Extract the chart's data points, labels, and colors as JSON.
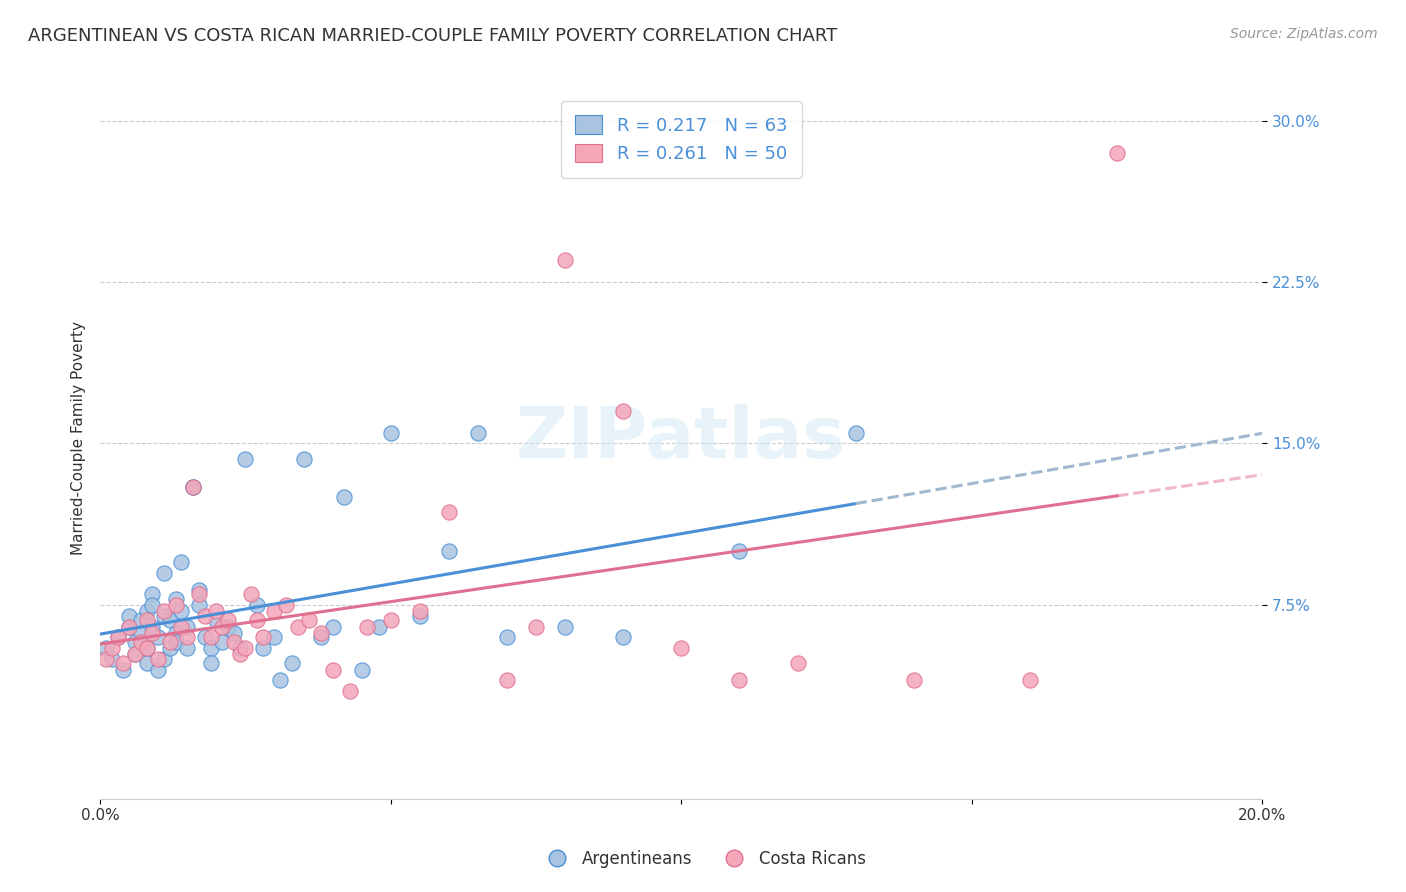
{
  "title": "ARGENTINEAN VS COSTA RICAN MARRIED-COUPLE FAMILY POVERTY CORRELATION CHART",
  "source": "Source: ZipAtlas.com",
  "ylabel": "Married-Couple Family Poverty",
  "xlim": [
    0.0,
    0.2
  ],
  "ylim": [
    -0.015,
    0.32
  ],
  "ytick_labels": [
    "7.5%",
    "15.0%",
    "22.5%",
    "30.0%"
  ],
  "ytick_positions": [
    0.075,
    0.15,
    0.225,
    0.3
  ],
  "argentineans_color": "#a8c4e0",
  "costa_ricans_color": "#f4a7b9",
  "trend_arg_color": "#4a90d9",
  "trend_cr_color": "#e07090",
  "trend_arg_dashed_color": "#a0b8d0",
  "legend_R_arg": "0.217",
  "legend_N_arg": "63",
  "legend_R_cr": "0.261",
  "legend_N_cr": "50",
  "watermark": "ZIPatlas",
  "argentineans_x": [
    0.001,
    0.002,
    0.003,
    0.004,
    0.005,
    0.005,
    0.006,
    0.006,
    0.007,
    0.007,
    0.008,
    0.008,
    0.008,
    0.009,
    0.009,
    0.009,
    0.01,
    0.01,
    0.011,
    0.011,
    0.011,
    0.012,
    0.012,
    0.013,
    0.013,
    0.013,
    0.014,
    0.014,
    0.015,
    0.015,
    0.016,
    0.016,
    0.017,
    0.017,
    0.018,
    0.019,
    0.019,
    0.02,
    0.021,
    0.022,
    0.023,
    0.024,
    0.025,
    0.027,
    0.028,
    0.03,
    0.031,
    0.033,
    0.035,
    0.038,
    0.04,
    0.042,
    0.045,
    0.048,
    0.05,
    0.055,
    0.06,
    0.065,
    0.07,
    0.08,
    0.09,
    0.11,
    0.13
  ],
  "argentineans_y": [
    0.055,
    0.05,
    0.06,
    0.045,
    0.065,
    0.07,
    0.058,
    0.052,
    0.068,
    0.062,
    0.055,
    0.072,
    0.048,
    0.08,
    0.075,
    0.065,
    0.06,
    0.045,
    0.09,
    0.07,
    0.05,
    0.055,
    0.068,
    0.062,
    0.078,
    0.058,
    0.095,
    0.072,
    0.055,
    0.065,
    0.13,
    0.13,
    0.075,
    0.082,
    0.06,
    0.055,
    0.048,
    0.068,
    0.058,
    0.065,
    0.062,
    0.055,
    0.143,
    0.075,
    0.055,
    0.06,
    0.04,
    0.048,
    0.143,
    0.06,
    0.065,
    0.125,
    0.045,
    0.065,
    0.155,
    0.07,
    0.1,
    0.155,
    0.06,
    0.065,
    0.06,
    0.1,
    0.155
  ],
  "costa_ricans_x": [
    0.001,
    0.002,
    0.003,
    0.004,
    0.005,
    0.006,
    0.007,
    0.008,
    0.008,
    0.009,
    0.01,
    0.011,
    0.012,
    0.013,
    0.014,
    0.015,
    0.016,
    0.017,
    0.018,
    0.019,
    0.02,
    0.021,
    0.022,
    0.023,
    0.024,
    0.025,
    0.026,
    0.027,
    0.028,
    0.03,
    0.032,
    0.034,
    0.036,
    0.038,
    0.04,
    0.043,
    0.046,
    0.05,
    0.055,
    0.06,
    0.07,
    0.075,
    0.08,
    0.09,
    0.1,
    0.11,
    0.12,
    0.14,
    0.16,
    0.175
  ],
  "costa_ricans_y": [
    0.05,
    0.055,
    0.06,
    0.048,
    0.065,
    0.052,
    0.058,
    0.055,
    0.068,
    0.062,
    0.05,
    0.072,
    0.058,
    0.075,
    0.065,
    0.06,
    0.13,
    0.08,
    0.07,
    0.06,
    0.072,
    0.065,
    0.068,
    0.058,
    0.052,
    0.055,
    0.08,
    0.068,
    0.06,
    0.072,
    0.075,
    0.065,
    0.068,
    0.062,
    0.045,
    0.035,
    0.065,
    0.068,
    0.072,
    0.118,
    0.04,
    0.065,
    0.235,
    0.165,
    0.055,
    0.04,
    0.048,
    0.04,
    0.04,
    0.285
  ]
}
